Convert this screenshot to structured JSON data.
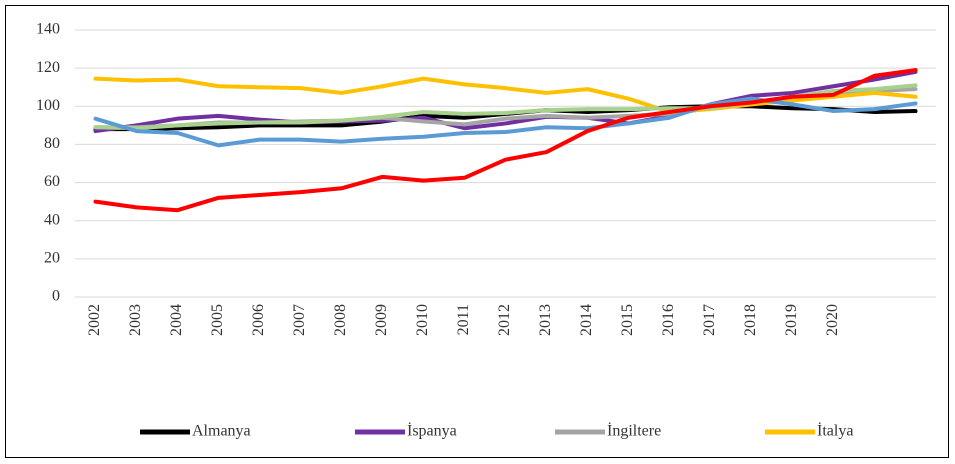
{
  "chart_data": {
    "type": "line",
    "categories": [
      "2002",
      "2003",
      "2004",
      "2005",
      "2006",
      "2007",
      "2008",
      "2009",
      "2010",
      "2011",
      "2012",
      "2013",
      "2014",
      "2015",
      "2016",
      "2017",
      "2018",
      "2019",
      "2020",
      null,
      null
    ],
    "series": [
      {
        "name": "Almanya",
        "color": "#000000",
        "values": [
          88,
          88,
          88.5,
          89,
          90,
          90,
          90,
          92,
          95,
          94,
          96,
          98,
          97,
          98,
          99.5,
          100,
          100,
          99,
          98.5,
          97,
          97.5
        ]
      },
      {
        "name": "İspanya",
        "color": "#7030a0",
        "values": [
          87,
          90,
          93.5,
          95,
          93,
          91.5,
          92,
          92.5,
          94,
          88.5,
          91,
          94.5,
          94,
          91,
          95,
          101,
          105.5,
          107,
          110.5,
          114,
          118
        ]
      },
      {
        "name": "İngiltere",
        "color": "#a5a5a5",
        "values": [
          89,
          89,
          90,
          91.5,
          91.5,
          92,
          92.5,
          94,
          92,
          90.5,
          93.5,
          95,
          94,
          95,
          96,
          99,
          101,
          104,
          106,
          108,
          109
        ]
      },
      {
        "name": "İtalya",
        "color": "#ffc000",
        "values": [
          114.5,
          113.5,
          114,
          110.5,
          110,
          109.5,
          107,
          110.5,
          114.5,
          111.5,
          109.5,
          107,
          109,
          104,
          97,
          98.5,
          101,
          103,
          105,
          107,
          105
        ]
      },
      {
        "color": "#a9d18e",
        "values": [
          89,
          88.5,
          90,
          91,
          91.5,
          91.5,
          92.5,
          94.5,
          97,
          96,
          96.5,
          98,
          98.5,
          98.5,
          99,
          99,
          102,
          105,
          108,
          109,
          111
        ]
      },
      {
        "color": "#5b9bd5",
        "values": [
          93.5,
          87,
          86,
          79.5,
          82.5,
          82.5,
          81.5,
          83,
          84,
          86,
          86.5,
          89,
          88.5,
          91,
          94,
          101,
          104,
          101,
          97.5,
          98.5,
          101.5
        ]
      },
      {
        "color": "#ff0000",
        "values": [
          50,
          47,
          45.5,
          52,
          53.5,
          55,
          57,
          63,
          61,
          62.5,
          72,
          76,
          87,
          94,
          97,
          100,
          102,
          105,
          106,
          116,
          119
        ]
      }
    ],
    "ylim": [
      0,
      140
    ],
    "yticks": [
      0,
      20,
      40,
      60,
      80,
      100,
      120,
      140
    ],
    "grid": true,
    "legend": "bottom"
  }
}
